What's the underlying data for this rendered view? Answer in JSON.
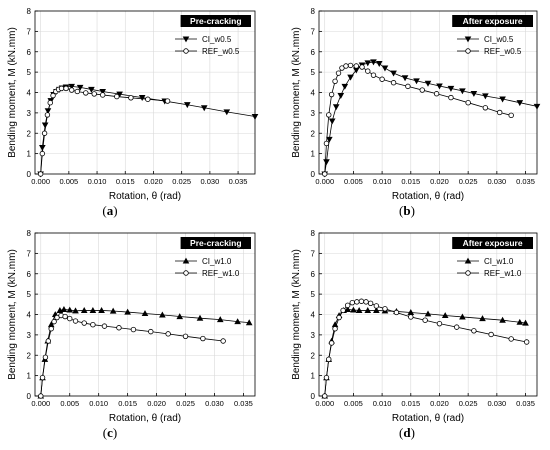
{
  "chart_data": [
    {
      "type": "line",
      "caption_letter": "a",
      "tag": "Pre-cracking",
      "xlabel": "Rotation, θ (rad)",
      "ylabel": "Bending moment, M (kN.mm)",
      "xlim": [
        -0.001,
        0.038
      ],
      "ylim": [
        0,
        8
      ],
      "xticks": [
        "0.000",
        "0.005",
        "0.010",
        "0.015",
        "0.020",
        "0.025",
        "0.030",
        "0.035"
      ],
      "yticks": [
        "0",
        "1",
        "2",
        "3",
        "4",
        "5",
        "6",
        "7",
        "8"
      ],
      "legend_position": "top-right",
      "series": [
        {
          "name": "CI_w0.5",
          "marker": "triangle-down",
          "filled": true,
          "x": [
            0,
            0.0003,
            0.0008,
            0.0013,
            0.0018,
            0.0023,
            0.0028,
            0.0033,
            0.0038,
            0.0045,
            0.0055,
            0.007,
            0.009,
            0.011,
            0.014,
            0.018,
            0.022,
            0.026,
            0.029,
            0.033,
            0.038
          ],
          "y": [
            0,
            1.3,
            2.4,
            3.1,
            3.6,
            3.9,
            4.05,
            4.15,
            4.22,
            4.27,
            4.3,
            4.25,
            4.15,
            4.05,
            3.92,
            3.75,
            3.58,
            3.4,
            3.25,
            3.05,
            2.82
          ]
        },
        {
          "name": "REF_w0.5",
          "marker": "circle",
          "filled": false,
          "x": [
            0,
            0.0003,
            0.0007,
            0.0012,
            0.0017,
            0.0022,
            0.0027,
            0.0032,
            0.0037,
            0.0045,
            0.0055,
            0.0065,
            0.008,
            0.0095,
            0.011,
            0.0135,
            0.016,
            0.019,
            0.0225
          ],
          "y": [
            0,
            1.0,
            2.0,
            2.9,
            3.5,
            3.85,
            4.05,
            4.15,
            4.2,
            4.2,
            4.12,
            4.05,
            3.98,
            3.93,
            3.88,
            3.8,
            3.74,
            3.67,
            3.58
          ]
        }
      ]
    },
    {
      "type": "line",
      "caption_letter": "b",
      "tag": "After exposure",
      "xlabel": "Rotation, θ (rad)",
      "ylabel": "Bending moment, M (kN.mm)",
      "xlim": [
        -0.001,
        0.037
      ],
      "ylim": [
        0,
        8
      ],
      "xticks": [
        "0.000",
        "0.005",
        "0.010",
        "0.015",
        "0.020",
        "0.025",
        "0.030",
        "0.035"
      ],
      "yticks": [
        "0",
        "1",
        "2",
        "3",
        "4",
        "5",
        "6",
        "7",
        "8"
      ],
      "legend_position": "top-right",
      "series": [
        {
          "name": "CI_w0.5",
          "marker": "triangle-down",
          "filled": true,
          "x": [
            0,
            0.0003,
            0.0008,
            0.0013,
            0.002,
            0.0028,
            0.0035,
            0.0045,
            0.0055,
            0.0065,
            0.0075,
            0.0085,
            0.0095,
            0.0105,
            0.012,
            0.014,
            0.016,
            0.018,
            0.02,
            0.022,
            0.024,
            0.026,
            0.028,
            0.031,
            0.034,
            0.037
          ],
          "y": [
            0,
            0.6,
            1.7,
            2.6,
            3.3,
            3.85,
            4.3,
            4.75,
            5.1,
            5.35,
            5.45,
            5.5,
            5.42,
            5.2,
            4.95,
            4.72,
            4.57,
            4.45,
            4.32,
            4.2,
            4.08,
            3.95,
            3.83,
            3.68,
            3.5,
            3.32
          ]
        },
        {
          "name": "REF_w0.5",
          "marker": "circle",
          "filled": false,
          "x": [
            0,
            0.0003,
            0.0007,
            0.0012,
            0.0018,
            0.0024,
            0.003,
            0.0037,
            0.0045,
            0.0055,
            0.0065,
            0.0075,
            0.0085,
            0.01,
            0.012,
            0.0145,
            0.017,
            0.0195,
            0.022,
            0.025,
            0.028,
            0.0305,
            0.0325
          ],
          "y": [
            0,
            1.5,
            2.9,
            3.9,
            4.55,
            4.95,
            5.2,
            5.3,
            5.33,
            5.3,
            5.25,
            5.05,
            4.85,
            4.65,
            4.48,
            4.3,
            4.12,
            3.94,
            3.75,
            3.5,
            3.25,
            3.02,
            2.88
          ]
        }
      ]
    },
    {
      "type": "line",
      "caption_letter": "c",
      "tag": "Pre-cracking",
      "xlabel": "Rotation, θ (rad)",
      "ylabel": "Bending moment, M (kN.mm)",
      "xlim": [
        -0.001,
        0.037
      ],
      "ylim": [
        0,
        8
      ],
      "xticks": [
        "0.000",
        "0.005",
        "0.010",
        "0.015",
        "0.020",
        "0.025",
        "0.030",
        "0.035"
      ],
      "yticks": [
        "0",
        "1",
        "2",
        "3",
        "4",
        "5",
        "6",
        "7",
        "8"
      ],
      "legend_position": "top-right",
      "series": [
        {
          "name": "CI_w1.0",
          "marker": "triangle-up",
          "filled": true,
          "x": [
            0,
            0.0003,
            0.0007,
            0.0012,
            0.0018,
            0.0025,
            0.0033,
            0.004,
            0.005,
            0.006,
            0.0075,
            0.009,
            0.0105,
            0.0125,
            0.015,
            0.018,
            0.021,
            0.024,
            0.0275,
            0.031,
            0.034,
            0.036
          ],
          "y": [
            0,
            0.9,
            1.8,
            2.7,
            3.5,
            4.0,
            4.2,
            4.25,
            4.22,
            4.18,
            4.2,
            4.2,
            4.2,
            4.17,
            4.12,
            4.05,
            3.98,
            3.9,
            3.82,
            3.75,
            3.65,
            3.6
          ]
        },
        {
          "name": "REF_w1.0",
          "marker": "circle",
          "filled": false,
          "x": [
            0,
            0.0003,
            0.0008,
            0.0013,
            0.0018,
            0.0023,
            0.0028,
            0.0035,
            0.0042,
            0.005,
            0.006,
            0.0075,
            0.009,
            0.011,
            0.0135,
            0.016,
            0.019,
            0.022,
            0.025,
            0.028,
            0.0315
          ],
          "y": [
            0,
            0.9,
            1.9,
            2.7,
            3.3,
            3.65,
            3.85,
            3.95,
            3.9,
            3.8,
            3.68,
            3.58,
            3.5,
            3.43,
            3.35,
            3.26,
            3.16,
            3.05,
            2.93,
            2.82,
            2.7
          ]
        }
      ]
    },
    {
      "type": "line",
      "caption_letter": "d",
      "tag": "After exposure",
      "xlabel": "Rotation, θ (rad)",
      "ylabel": "Bending moment, M (kN.mm)",
      "xlim": [
        -0.001,
        0.037
      ],
      "ylim": [
        0,
        8
      ],
      "xticks": [
        "0.000",
        "0.005",
        "0.010",
        "0.015",
        "0.020",
        "0.025",
        "0.030",
        "0.035"
      ],
      "yticks": [
        "0",
        "1",
        "2",
        "3",
        "4",
        "5",
        "6",
        "7",
        "8"
      ],
      "legend_position": "top-right",
      "series": [
        {
          "name": "CI_w1.0",
          "marker": "triangle-up",
          "filled": true,
          "x": [
            0,
            0.0003,
            0.0007,
            0.0012,
            0.0018,
            0.0025,
            0.0033,
            0.004,
            0.005,
            0.006,
            0.0075,
            0.009,
            0.0105,
            0.0125,
            0.015,
            0.018,
            0.021,
            0.024,
            0.0275,
            0.031,
            0.034,
            0.035
          ],
          "y": [
            0,
            0.9,
            1.8,
            2.7,
            3.5,
            3.95,
            4.2,
            4.25,
            4.22,
            4.2,
            4.2,
            4.2,
            4.18,
            4.15,
            4.1,
            4.03,
            3.95,
            3.88,
            3.8,
            3.72,
            3.62,
            3.58
          ]
        },
        {
          "name": "REF_w1.0",
          "marker": "circle",
          "filled": false,
          "x": [
            0,
            0.0003,
            0.0007,
            0.0012,
            0.0018,
            0.0025,
            0.0032,
            0.004,
            0.0048,
            0.0056,
            0.0064,
            0.0072,
            0.008,
            0.009,
            0.0105,
            0.0125,
            0.015,
            0.0175,
            0.02,
            0.023,
            0.026,
            0.029,
            0.0325,
            0.0352
          ],
          "y": [
            0,
            0.9,
            1.8,
            2.6,
            3.3,
            3.85,
            4.2,
            4.45,
            4.58,
            4.62,
            4.65,
            4.62,
            4.55,
            4.42,
            4.28,
            4.1,
            3.88,
            3.72,
            3.55,
            3.38,
            3.2,
            3.02,
            2.8,
            2.65
          ]
        }
      ]
    }
  ]
}
